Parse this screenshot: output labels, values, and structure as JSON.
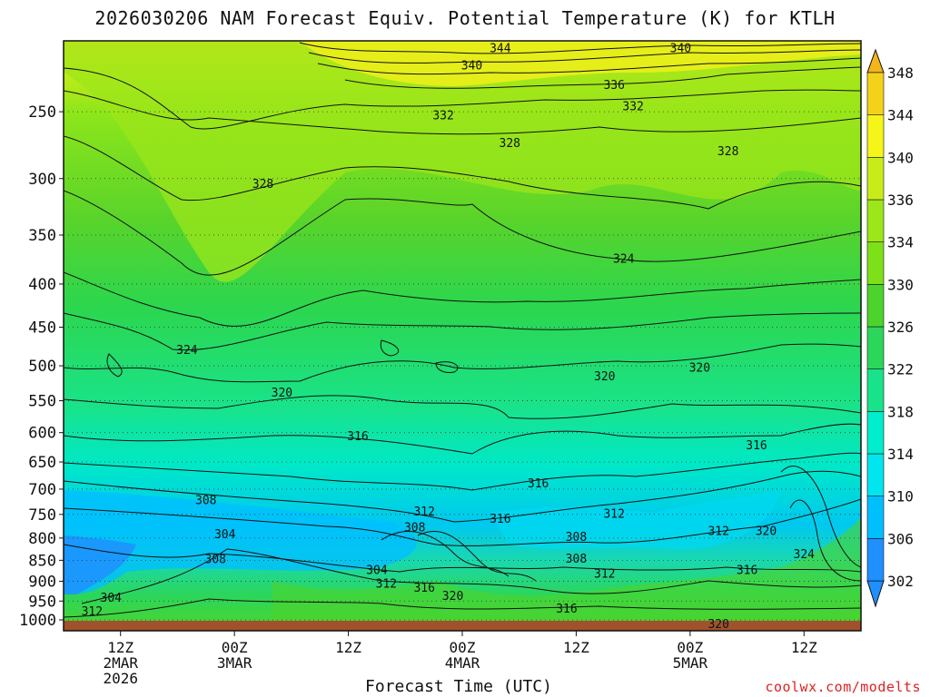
{
  "chart_data": {
    "type": "heatmap",
    "title": "2026030206 NAM Forecast Equiv. Potential Temperature (K) for KTLH",
    "xlabel": "Forecast Time (UTC)",
    "ylabel": "",
    "credit": "coolwx.com/modelts",
    "y_ticks": [
      250,
      300,
      350,
      400,
      450,
      500,
      550,
      600,
      650,
      700,
      750,
      800,
      850,
      900,
      950,
      1000
    ],
    "y_scale": "log-pressure",
    "ylim": [
      1000,
      200
    ],
    "x_ticks": [
      {
        "hour": 6,
        "line1": "12Z",
        "line2": "2MAR",
        "line3": "2026"
      },
      {
        "hour": 18,
        "line1": "00Z",
        "line2": "3MAR",
        "line3": ""
      },
      {
        "hour": 30,
        "line1": "12Z",
        "line2": "",
        "line3": ""
      },
      {
        "hour": 42,
        "line1": "00Z",
        "line2": "4MAR",
        "line3": ""
      },
      {
        "hour": 54,
        "line1": "12Z",
        "line2": "",
        "line3": ""
      },
      {
        "hour": 66,
        "line1": "00Z",
        "line2": "5MAR",
        "line3": ""
      },
      {
        "hour": 78,
        "line1": "12Z",
        "line2": "",
        "line3": ""
      }
    ],
    "xlim": [
      0,
      84
    ],
    "colorbar": {
      "levels": [
        302,
        306,
        310,
        314,
        318,
        322,
        326,
        330,
        334,
        336,
        340,
        344,
        348
      ],
      "colors": [
        "#1e90ff",
        "#00bfff",
        "#00e5ee",
        "#00eecc",
        "#19e38a",
        "#2cd65a",
        "#4cd42c",
        "#7ee019",
        "#9ce619",
        "#c8ec1a",
        "#f5f51a",
        "#f5d21a",
        "#f5b41a"
      ]
    },
    "contour_labels": [
      {
        "text": "344",
        "hour": 46,
        "p": 210
      },
      {
        "text": "340",
        "hour": 65,
        "p": 210
      },
      {
        "text": "340",
        "hour": 43,
        "p": 220
      },
      {
        "text": "336",
        "hour": 58,
        "p": 232
      },
      {
        "text": "332",
        "hour": 60,
        "p": 246
      },
      {
        "text": "332",
        "hour": 40,
        "p": 252
      },
      {
        "text": "328",
        "hour": 47,
        "p": 272
      },
      {
        "text": "328",
        "hour": 70,
        "p": 278
      },
      {
        "text": "328",
        "hour": 21,
        "p": 304
      },
      {
        "text": "324",
        "hour": 59,
        "p": 373
      },
      {
        "text": "324",
        "hour": 13,
        "p": 478
      },
      {
        "text": "320",
        "hour": 23,
        "p": 537
      },
      {
        "text": "320",
        "hour": 57,
        "p": 514
      },
      {
        "text": "320",
        "hour": 67,
        "p": 502
      },
      {
        "text": "316",
        "hour": 31,
        "p": 605
      },
      {
        "text": "316",
        "hour": 50,
        "p": 688
      },
      {
        "text": "316",
        "hour": 73,
        "p": 620
      },
      {
        "text": "308",
        "hour": 15,
        "p": 720
      },
      {
        "text": "312",
        "hour": 38,
        "p": 743
      },
      {
        "text": "316",
        "hour": 46,
        "p": 758
      },
      {
        "text": "312",
        "hour": 58,
        "p": 748
      },
      {
        "text": "304",
        "hour": 17,
        "p": 790
      },
      {
        "text": "308",
        "hour": 37,
        "p": 776
      },
      {
        "text": "308",
        "hour": 54,
        "p": 796
      },
      {
        "text": "312",
        "hour": 69,
        "p": 784
      },
      {
        "text": "320",
        "hour": 74,
        "p": 784
      },
      {
        "text": "308",
        "hour": 16,
        "p": 846
      },
      {
        "text": "304",
        "hour": 33,
        "p": 872
      },
      {
        "text": "308",
        "hour": 54,
        "p": 845
      },
      {
        "text": "324",
        "hour": 78,
        "p": 835
      },
      {
        "text": "312",
        "hour": 34,
        "p": 905
      },
      {
        "text": "316",
        "hour": 38,
        "p": 915
      },
      {
        "text": "320",
        "hour": 41,
        "p": 935
      },
      {
        "text": "312",
        "hour": 57,
        "p": 880
      },
      {
        "text": "316",
        "hour": 72,
        "p": 872
      },
      {
        "text": "304",
        "hour": 5,
        "p": 940
      },
      {
        "text": "312",
        "hour": 3,
        "p": 975
      },
      {
        "text": "316",
        "hour": 53,
        "p": 968
      },
      {
        "text": "320",
        "hour": 69,
        "p": 1010
      }
    ]
  }
}
